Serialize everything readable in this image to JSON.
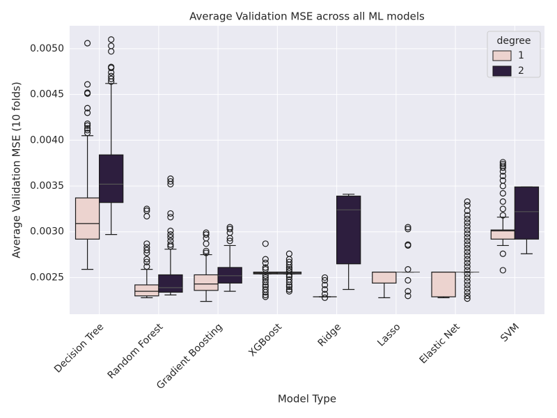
{
  "chart_data": {
    "type": "box",
    "title": "Average Validation MSE across all ML models",
    "x_label": "Model Type",
    "y_label": "Average Validation MSE (10 folds)",
    "legend_title": "degree",
    "legend_position": "upper right",
    "grid": true,
    "categories": [
      "Decision Tree",
      "Random Forest",
      "Gradient Boosting",
      "XGBoost",
      "Ridge",
      "Lasso",
      "Elastic Net",
      "SVM"
    ],
    "ylim": [
      0.0021,
      0.00525
    ],
    "yticks": [
      {
        "value": 0.0025,
        "label": "0.0025"
      },
      {
        "value": 0.003,
        "label": "0.0030"
      },
      {
        "value": 0.0035,
        "label": "0.0035"
      },
      {
        "value": 0.004,
        "label": "0.0040"
      },
      {
        "value": 0.0045,
        "label": "0.0045"
      },
      {
        "value": 0.005,
        "label": "0.0050"
      }
    ],
    "series": [
      {
        "name": "1",
        "color": "#ecd3cf",
        "boxes": [
          {
            "whislo": 0.00259,
            "q1": 0.00292,
            "med": 0.00309,
            "q3": 0.00337,
            "whishi": 0.00405,
            "fliers": [
              0.00506,
              0.00461,
              0.00452,
              0.00451,
              0.00435,
              0.0043,
              0.00418,
              0.00416,
              0.00413,
              0.00411,
              0.00408
            ]
          },
          {
            "whislo": 0.00228,
            "q1": 0.0023,
            "med": 0.00235,
            "q3": 0.00242,
            "whishi": 0.00259,
            "fliers": [
              0.00325,
              0.00323,
              0.00317,
              0.00287,
              0.00283,
              0.0028,
              0.00277,
              0.0027,
              0.00267,
              0.00262
            ]
          },
          {
            "whislo": 0.00224,
            "q1": 0.00236,
            "med": 0.00243,
            "q3": 0.00253,
            "whishi": 0.00275,
            "fliers": [
              0.00299,
              0.00297,
              0.00293,
              0.00287,
              0.00279,
              0.00277
            ]
          },
          {
            "whislo": 0.00254,
            "q1": 0.00254,
            "med": 0.00255,
            "q3": 0.00256,
            "whishi": 0.00256,
            "fliers": [
              0.00287,
              0.0027,
              0.00266,
              0.00261,
              0.00259,
              0.00252,
              0.0025,
              0.00248,
              0.00245,
              0.00242,
              0.0024,
              0.00237,
              0.00234,
              0.00231,
              0.00229
            ]
          },
          {
            "whislo": 0.00229,
            "q1": 0.00229,
            "med": 0.00229,
            "q3": 0.00229,
            "whishi": 0.00229,
            "fliers": [
              0.0025,
              0.00247,
              0.00242,
              0.00237,
              0.00232,
              0.00228
            ]
          },
          {
            "whislo": 0.00228,
            "q1": 0.00244,
            "med": 0.00256,
            "q3": 0.00256,
            "whishi": 0.00256,
            "fliers": []
          },
          {
            "whislo": 0.00228,
            "q1": 0.00229,
            "med": 0.00256,
            "q3": 0.00256,
            "whishi": 0.00256,
            "fliers": []
          },
          {
            "whislo": 0.00285,
            "q1": 0.00292,
            "med": 0.00301,
            "q3": 0.00302,
            "whishi": 0.00316,
            "fliers": [
              0.00376,
              0.00374,
              0.00372,
              0.0037,
              0.00366,
              0.00361,
              0.00356,
              0.0035,
              0.00342,
              0.00333,
              0.00325,
              0.00318,
              0.00276,
              0.00258
            ]
          }
        ]
      },
      {
        "name": "2",
        "color": "#2d1e3e",
        "boxes": [
          {
            "whislo": 0.00297,
            "q1": 0.00332,
            "med": 0.00352,
            "q3": 0.00384,
            "whishi": 0.00462,
            "fliers": [
              0.0051,
              0.00503,
              0.00497,
              0.0048,
              0.00479,
              0.00474,
              0.0047,
              0.00467,
              0.00464
            ]
          },
          {
            "whislo": 0.00231,
            "q1": 0.00234,
            "med": 0.00239,
            "q3": 0.00253,
            "whishi": 0.00281,
            "fliers": [
              0.00358,
              0.00355,
              0.00352,
              0.0032,
              0.00316,
              0.00301,
              0.00297,
              0.00294,
              0.0029,
              0.00286,
              0.00284
            ]
          },
          {
            "whislo": 0.00235,
            "q1": 0.00244,
            "med": 0.00252,
            "q3": 0.00261,
            "whishi": 0.00285,
            "fliers": [
              0.00305,
              0.00303,
              0.00299,
              0.00293,
              0.0029
            ]
          },
          {
            "whislo": 0.00254,
            "q1": 0.00254,
            "med": 0.00255,
            "q3": 0.00256,
            "whishi": 0.00256,
            "fliers": [
              0.00276,
              0.0027,
              0.00267,
              0.00264,
              0.00261,
              0.00259,
              0.00257,
              0.00253,
              0.00251,
              0.00248,
              0.00245,
              0.00242,
              0.0024,
              0.00237,
              0.00235
            ]
          },
          {
            "whislo": 0.00237,
            "q1": 0.00265,
            "med": 0.00324,
            "q3": 0.00339,
            "whishi": 0.00341,
            "fliers": []
          },
          {
            "whislo": 0.00256,
            "q1": 0.00256,
            "med": 0.00256,
            "q3": 0.00256,
            "whishi": 0.00256,
            "fliers": [
              0.00305,
              0.00303,
              0.00286,
              0.00285,
              0.00259,
              0.00247,
              0.00235,
              0.0023
            ]
          },
          {
            "whislo": 0.00256,
            "q1": 0.00256,
            "med": 0.00256,
            "q3": 0.00256,
            "whishi": 0.00256,
            "fliers": [
              0.00333,
              0.00329,
              0.00323,
              0.00318,
              0.00314,
              0.0031,
              0.00306,
              0.00302,
              0.00298,
              0.00294,
              0.0029,
              0.00286,
              0.00282,
              0.00278,
              0.00274,
              0.0027,
              0.00266,
              0.00262,
              0.00258,
              0.00254,
              0.0025,
              0.00246,
              0.00242,
              0.00238,
              0.00234,
              0.0023,
              0.00227
            ]
          },
          {
            "whislo": 0.00276,
            "q1": 0.00292,
            "med": 0.00322,
            "q3": 0.00349,
            "whishi": 0.00349,
            "fliers": []
          }
        ]
      }
    ]
  }
}
